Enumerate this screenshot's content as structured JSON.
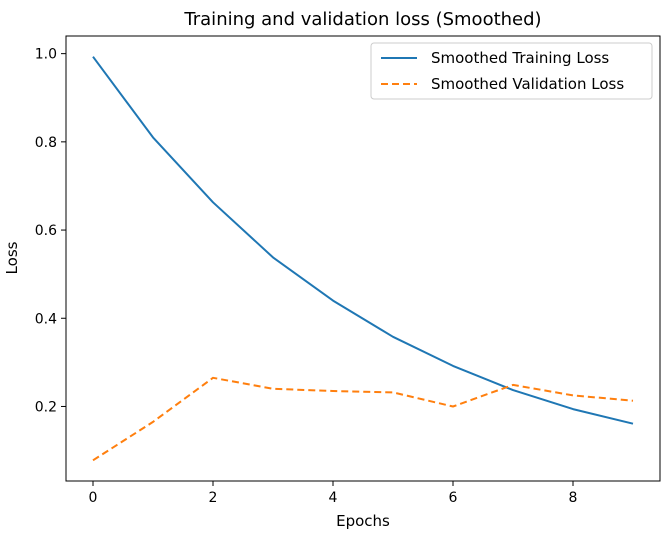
{
  "chart_data": {
    "type": "line",
    "title": "Training and validation loss (Smoothed)",
    "xlabel": "Epochs",
    "ylabel": "Loss",
    "xlim": [
      -0.45,
      9.45
    ],
    "ylim": [
      0.031,
      1.04
    ],
    "xticks": [
      0,
      2,
      4,
      6,
      8
    ],
    "yticks": [
      0.2,
      0.4,
      0.6,
      0.8,
      1.0
    ],
    "xtick_labels": [
      "0",
      "2",
      "4",
      "6",
      "8"
    ],
    "ytick_labels": [
      "0.2",
      "0.4",
      "0.6",
      "0.8",
      "1.0"
    ],
    "grid": false,
    "legend_position": "top-right",
    "x": [
      0,
      1,
      2,
      3,
      4,
      5,
      6,
      7,
      8,
      9
    ],
    "series": [
      {
        "name": "Smoothed Training Loss",
        "color": "#1f77b4",
        "linestyle": "solid",
        "values": [
          0.993,
          0.81,
          0.663,
          0.538,
          0.44,
          0.358,
          0.292,
          0.237,
          0.194,
          0.161
        ]
      },
      {
        "name": "Smoothed Validation Loss",
        "color": "#ff7f0e",
        "linestyle": "dashed",
        "values": [
          0.078,
          0.165,
          0.265,
          0.24,
          0.235,
          0.232,
          0.2,
          0.249,
          0.225,
          0.213
        ]
      }
    ]
  }
}
